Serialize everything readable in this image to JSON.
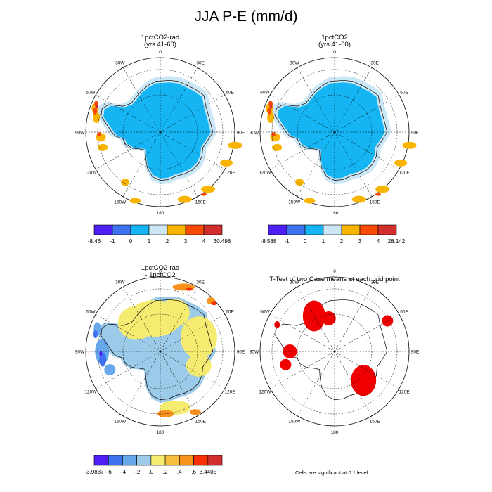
{
  "page": {
    "title": "JJA P-E (mm/d)",
    "footnote": "Cells are significant at 0.1 level"
  },
  "colors": {
    "pe_scale": [
      "#4f1ef5",
      "#3f72f0",
      "#14b5f2",
      "#cbe6f5",
      "#f9b400",
      "#fa4a05",
      "#d32e2e"
    ],
    "diff_scale": [
      "#4f1ef5",
      "#3f72f0",
      "#67a8ec",
      "#9ccbe9",
      "#f6eb71",
      "#f6bf3f",
      "#f7931c",
      "#f73003",
      "#d32e2e"
    ],
    "significant": "#f00000",
    "land_outline": "#000000"
  },
  "chart_data": [
    {
      "type": "heatmap",
      "projection": "south-polar-stereographic",
      "title": "1pctCO2-rad",
      "subtitle": "(yrs 41-60)",
      "longitude_labels": [
        "0",
        "30E",
        "60E",
        "90E",
        "120E",
        "150E",
        "180",
        "150W",
        "120W",
        "90W",
        "60W",
        "30W"
      ],
      "colorbar": {
        "labels": [
          "-8.46",
          "-1",
          "0",
          "1",
          "2",
          "3",
          "4",
          "30.498"
        ],
        "min": -8.46,
        "max": 30.498,
        "levels": [
          -1,
          0,
          1,
          2,
          3,
          4
        ]
      },
      "dominant_values": {
        "continental_interior": "0 to 1",
        "coastal_margins": "1 to 2",
        "peninsula_and_coast": "2 to 4 and above"
      }
    },
    {
      "type": "heatmap",
      "projection": "south-polar-stereographic",
      "title": "1pctCO2",
      "subtitle": "(yrs 41-60)",
      "longitude_labels": [
        "0",
        "30E",
        "60E",
        "90E",
        "120E",
        "150E",
        "180",
        "150W",
        "120W",
        "90W",
        "60W",
        "30W"
      ],
      "colorbar": {
        "labels": [
          "-8.588",
          "-1",
          "0",
          "1",
          "2",
          "3",
          "4",
          "28.142"
        ],
        "min": -8.588,
        "max": 28.142,
        "levels": [
          -1,
          0,
          1,
          2,
          3,
          4
        ]
      },
      "dominant_values": {
        "continental_interior": "0 to 1",
        "coastal_margins": "1 to 2",
        "peninsula_and_coast": "2 to 4 and above"
      }
    },
    {
      "type": "heatmap",
      "projection": "south-polar-stereographic",
      "title": "1pctCO2-rad",
      "subtitle": "- 1pctCO2",
      "longitude_labels": [
        "0",
        "30E",
        "60E",
        "90E",
        "120E",
        "150E",
        "180",
        "150W",
        "120W",
        "90W",
        "60W",
        "30W"
      ],
      "colorbar": {
        "labels": [
          "-3.9837",
          "-.6",
          "-.4",
          "-.2",
          ".0",
          ".2",
          ".4",
          ".6",
          "3.4405"
        ],
        "min": -3.9837,
        "max": 3.4405,
        "levels": [
          -0.6,
          -0.4,
          -0.2,
          0.0,
          0.2,
          0.4,
          0.6
        ]
      },
      "dominant_values": {
        "east_antarctica": "-0.2 to 0.2",
        "peninsula_west_coast": "-0.6 and below",
        "coastal_patches": "0.4 to 0.6 and above"
      }
    },
    {
      "type": "heatmap",
      "projection": "south-polar-stereographic",
      "title": "T-Test of two Case means at each grid point",
      "subtitle": "",
      "longitude_labels": [
        "0",
        "30E",
        "60E",
        "90E",
        "120E",
        "150E",
        "180",
        "150W",
        "120W",
        "90W",
        "60W",
        "30W"
      ],
      "significance_level": 0.1
    }
  ]
}
